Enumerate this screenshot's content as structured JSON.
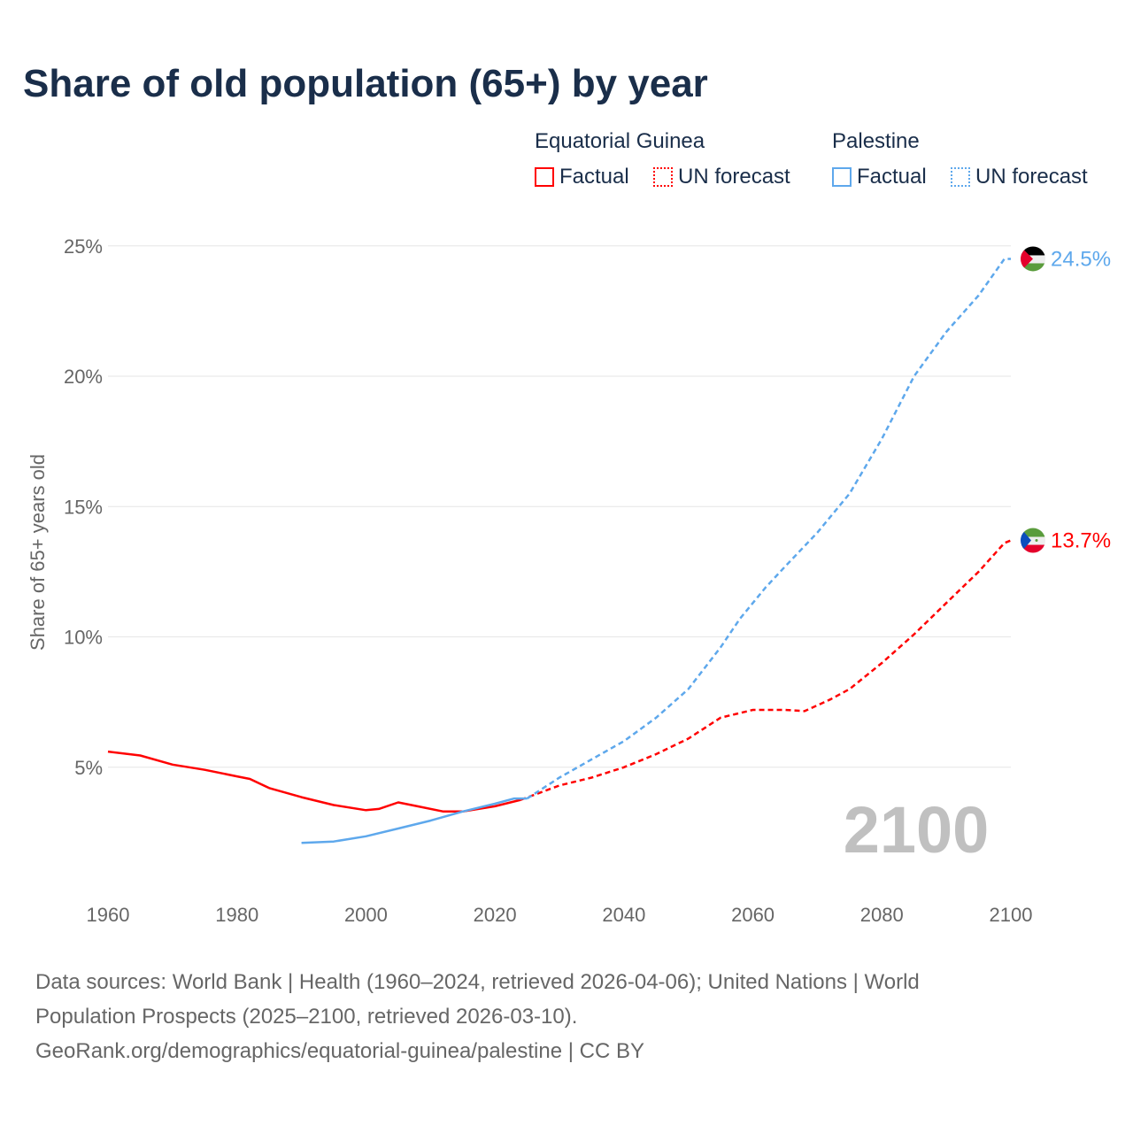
{
  "title": "Share of old population (65+) by year",
  "legend": {
    "groups": [
      {
        "name": "Equatorial Guinea",
        "color": "#ff0000",
        "factual": "Factual",
        "forecast": "UN forecast"
      },
      {
        "name": "Palestine",
        "color": "#5ea8ec",
        "factual": "Factual",
        "forecast": "UN forecast"
      }
    ]
  },
  "year_watermark": "2100",
  "footer": {
    "line1": "Data sources: World Bank | Health (1960–2024, retrieved 2026-04-06); United Nations | World",
    "line2": "Population Prospects (2025–2100, retrieved 2026-03-10).",
    "line3": "GeoRank.org/demographics/equatorial-guinea/palestine | CC BY"
  },
  "chart_data": {
    "type": "line",
    "title": "Share of old population (65+) by year",
    "ylabel": "Share of 65+ years old",
    "xlim": [
      1960,
      2100
    ],
    "ylim": [
      0,
      25
    ],
    "xticks": [
      "1960",
      "1980",
      "2000",
      "2020",
      "2040",
      "2060",
      "2080",
      "2100"
    ],
    "yticks": [
      "5%",
      "10%",
      "15%",
      "20%",
      "25%"
    ],
    "ytick_values": [
      5,
      10,
      15,
      20,
      25
    ],
    "xtick_values": [
      1960,
      1980,
      2000,
      2020,
      2040,
      2060,
      2080,
      2100
    ],
    "series": [
      {
        "name": "Equatorial Guinea",
        "color": "#ff0000",
        "end_label": "13.7%",
        "factual": [
          [
            1960,
            5.6
          ],
          [
            1965,
            5.45
          ],
          [
            1970,
            5.1
          ],
          [
            1975,
            4.9
          ],
          [
            1980,
            4.65
          ],
          [
            1982,
            4.55
          ],
          [
            1985,
            4.2
          ],
          [
            1990,
            3.85
          ],
          [
            1995,
            3.55
          ],
          [
            2000,
            3.35
          ],
          [
            2002,
            3.4
          ],
          [
            2005,
            3.65
          ],
          [
            2008,
            3.5
          ],
          [
            2012,
            3.3
          ],
          [
            2015,
            3.3
          ],
          [
            2020,
            3.5
          ],
          [
            2024,
            3.75
          ]
        ],
        "forecast": [
          [
            2024,
            3.75
          ],
          [
            2030,
            4.3
          ],
          [
            2035,
            4.6
          ],
          [
            2040,
            5.0
          ],
          [
            2045,
            5.5
          ],
          [
            2050,
            6.1
          ],
          [
            2055,
            6.9
          ],
          [
            2060,
            7.2
          ],
          [
            2065,
            7.2
          ],
          [
            2068,
            7.15
          ],
          [
            2072,
            7.6
          ],
          [
            2075,
            8.0
          ],
          [
            2080,
            9.0
          ],
          [
            2085,
            10.1
          ],
          [
            2090,
            11.3
          ],
          [
            2095,
            12.5
          ],
          [
            2099,
            13.6
          ],
          [
            2100,
            13.7
          ]
        ]
      },
      {
        "name": "Palestine",
        "color": "#5ea8ec",
        "end_label": "24.5%",
        "factual": [
          [
            1990,
            2.1
          ],
          [
            1995,
            2.15
          ],
          [
            2000,
            2.35
          ],
          [
            2005,
            2.65
          ],
          [
            2010,
            2.95
          ],
          [
            2015,
            3.3
          ],
          [
            2020,
            3.6
          ],
          [
            2023,
            3.8
          ],
          [
            2025,
            3.8
          ]
        ],
        "forecast": [
          [
            2025,
            3.8
          ],
          [
            2030,
            4.6
          ],
          [
            2035,
            5.3
          ],
          [
            2040,
            6.0
          ],
          [
            2045,
            6.9
          ],
          [
            2050,
            8.0
          ],
          [
            2055,
            9.6
          ],
          [
            2058,
            10.7
          ],
          [
            2062,
            11.9
          ],
          [
            2065,
            12.7
          ],
          [
            2070,
            14.0
          ],
          [
            2075,
            15.5
          ],
          [
            2080,
            17.6
          ],
          [
            2085,
            20.0
          ],
          [
            2090,
            21.7
          ],
          [
            2095,
            23.1
          ],
          [
            2099,
            24.5
          ],
          [
            2100,
            24.5
          ]
        ]
      }
    ]
  }
}
